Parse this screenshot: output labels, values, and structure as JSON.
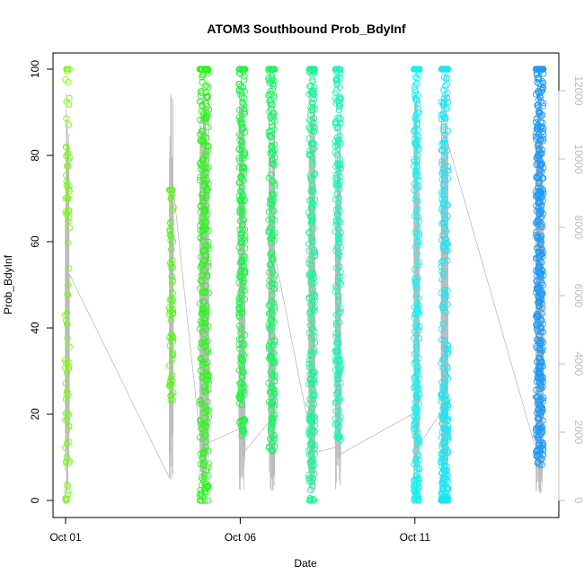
{
  "chart_data": {
    "type": "scatter",
    "title": "ATOM3 Southbound Prob_BdyInf",
    "xlabel": "Date",
    "ylabel": "Prob_BdyInf",
    "x_tick_labels": [
      "Oct 01",
      "Oct 06",
      "Oct 11"
    ],
    "x_tick_days": [
      1,
      6,
      11
    ],
    "xlim_days": [
      0.64,
      15.12
    ],
    "ylim": [
      0,
      100
    ],
    "y_ticks": [
      0,
      20,
      40,
      60,
      80,
      100
    ],
    "y2_lim": [
      0,
      12500
    ],
    "y2_ticks": [
      0,
      2000,
      4000,
      6000,
      8000,
      10000,
      12000
    ],
    "grid": false,
    "legend": "none",
    "marker": "open-circle",
    "overlay_line_color": "#bdbdbd",
    "series": [
      {
        "day_center": 1.05,
        "day_spread": 0.06,
        "n": 90,
        "y_range": [
          0,
          100
        ],
        "color": "#7ff71c",
        "cluster_low": 0.28
      },
      {
        "day_center": 4.03,
        "day_spread": 0.06,
        "n": 70,
        "y_range": [
          23,
          72
        ],
        "color": "#59f71a",
        "cluster_low": 0.0
      },
      {
        "day_center": 4.97,
        "day_spread": 0.13,
        "n": 320,
        "y_range": [
          0,
          100
        ],
        "color": "#2ef51f",
        "cluster_low": 0.0
      },
      {
        "day_center": 6.05,
        "day_spread": 0.09,
        "n": 230,
        "y_range": [
          15,
          100
        ],
        "color": "#1cf546",
        "cluster_low": 0.0
      },
      {
        "day_center": 6.9,
        "day_spread": 0.09,
        "n": 240,
        "y_range": [
          11,
          100
        ],
        "color": "#1cf566",
        "cluster_low": 0.0
      },
      {
        "day_center": 8.05,
        "day_spread": 0.09,
        "n": 260,
        "y_range": [
          0,
          100
        ],
        "color": "#1cf596",
        "cluster_low": 0.0
      },
      {
        "day_center": 8.8,
        "day_spread": 0.08,
        "n": 200,
        "y_range": [
          14,
          100
        ],
        "color": "#1cf5b4",
        "cluster_low": 0.0
      },
      {
        "day_center": 11.05,
        "day_spread": 0.08,
        "n": 260,
        "y_range": [
          0,
          100
        ],
        "color": "#1cf0f0",
        "cluster_low": 0.12
      },
      {
        "day_center": 11.85,
        "day_spread": 0.1,
        "n": 300,
        "y_range": [
          0,
          100
        ],
        "color": "#1ce6f5",
        "cluster_low": 0.35
      },
      {
        "day_center": 14.57,
        "day_spread": 0.11,
        "n": 420,
        "y_range": [
          8,
          100
        ],
        "color": "#1e9bf5",
        "cluster_low": 0.0
      }
    ]
  }
}
